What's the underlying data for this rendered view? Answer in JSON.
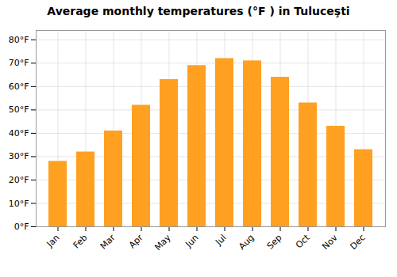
{
  "chart_data": {
    "type": "bar",
    "title": "Average monthly temperatures (°F ) in Tuluceşti",
    "categories": [
      "Jan",
      "Feb",
      "Mar",
      "Apr",
      "May",
      "Jun",
      "Jul",
      "Aug",
      "Sep",
      "Oct",
      "Nov",
      "Dec"
    ],
    "values": [
      28,
      32,
      41,
      52,
      63,
      69,
      72,
      71,
      64,
      53,
      43,
      33
    ],
    "color": "#FFA020",
    "ylim": [
      0,
      84
    ],
    "yticks": [
      {
        "value": 0,
        "label": "0°F"
      },
      {
        "value": 10,
        "label": "10°F"
      },
      {
        "value": 20,
        "label": "20°F"
      },
      {
        "value": 30,
        "label": "30°F"
      },
      {
        "value": 40,
        "label": "40°F"
      },
      {
        "value": 50,
        "label": "50°F"
      },
      {
        "value": 60,
        "label": "60°F"
      },
      {
        "value": 70,
        "label": "70°F"
      },
      {
        "value": 80,
        "label": "80°F"
      }
    ],
    "grid": true
  }
}
